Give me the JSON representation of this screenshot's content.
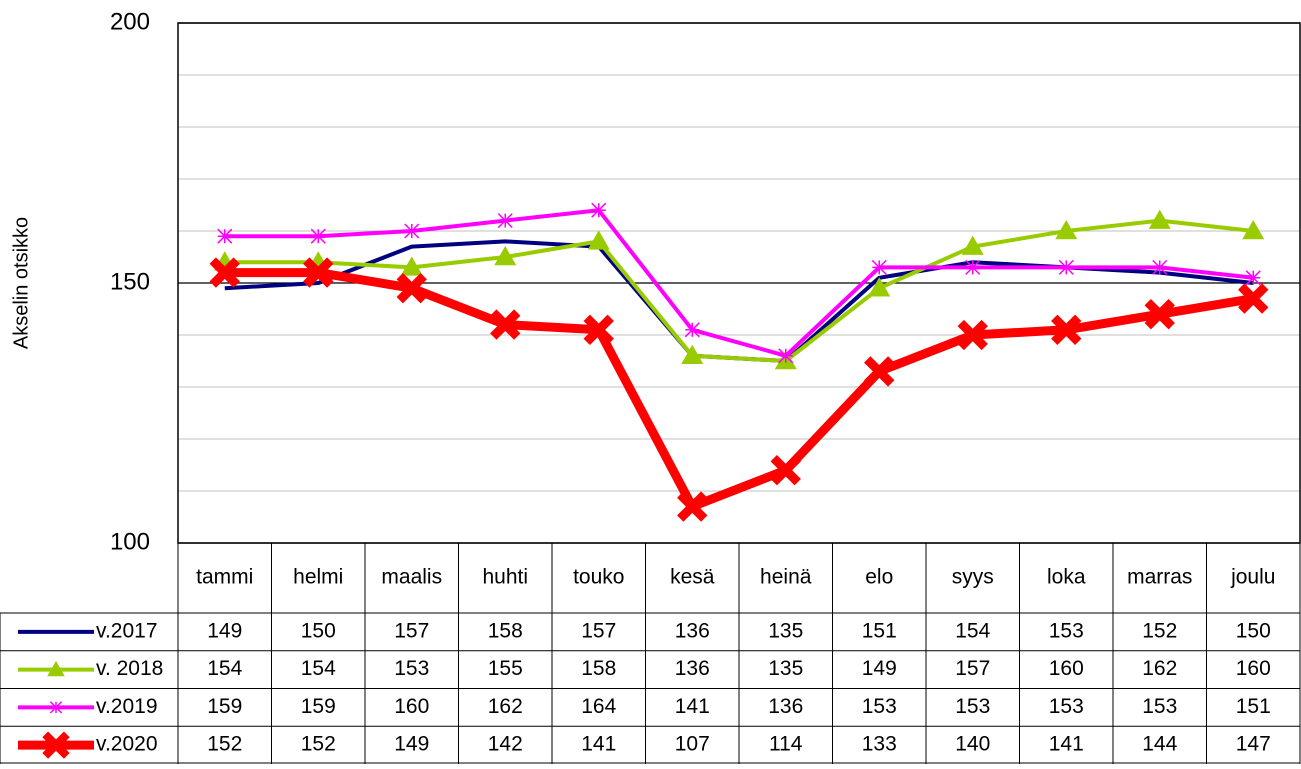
{
  "chart_data": {
    "type": "line",
    "y_axis_label": "Akselin otsikko",
    "categories": [
      "tammi",
      "helmi",
      "maalis",
      "huhti",
      "touko",
      "kesä",
      "heinä",
      "elo",
      "syys",
      "loka",
      "marras",
      "joulu"
    ],
    "series": [
      {
        "name": "v.2017",
        "color": "#000080",
        "marker": "none",
        "values": [
          149,
          150,
          157,
          158,
          157,
          136,
          135,
          151,
          154,
          153,
          152,
          150
        ]
      },
      {
        "name": "v. 2018",
        "color": "#99cc00",
        "marker": "triangle",
        "values": [
          154,
          154,
          153,
          155,
          158,
          136,
          135,
          149,
          157,
          160,
          162,
          160
        ]
      },
      {
        "name": "v.2019",
        "color": "#ff00ff",
        "marker": "asterisk",
        "values": [
          159,
          159,
          160,
          162,
          164,
          141,
          136,
          153,
          153,
          153,
          153,
          151
        ]
      },
      {
        "name": "v.2020",
        "color": "#ff0000",
        "marker": "x",
        "values": [
          152,
          152,
          149,
          142,
          141,
          107,
          114,
          133,
          140,
          141,
          144,
          147
        ]
      }
    ],
    "ylim": [
      100,
      200
    ],
    "yticks": [
      100,
      150,
      200
    ],
    "minor_gridlines": [
      110,
      120,
      130,
      140,
      160,
      170,
      180,
      190
    ],
    "grid": true,
    "data_table": true
  }
}
